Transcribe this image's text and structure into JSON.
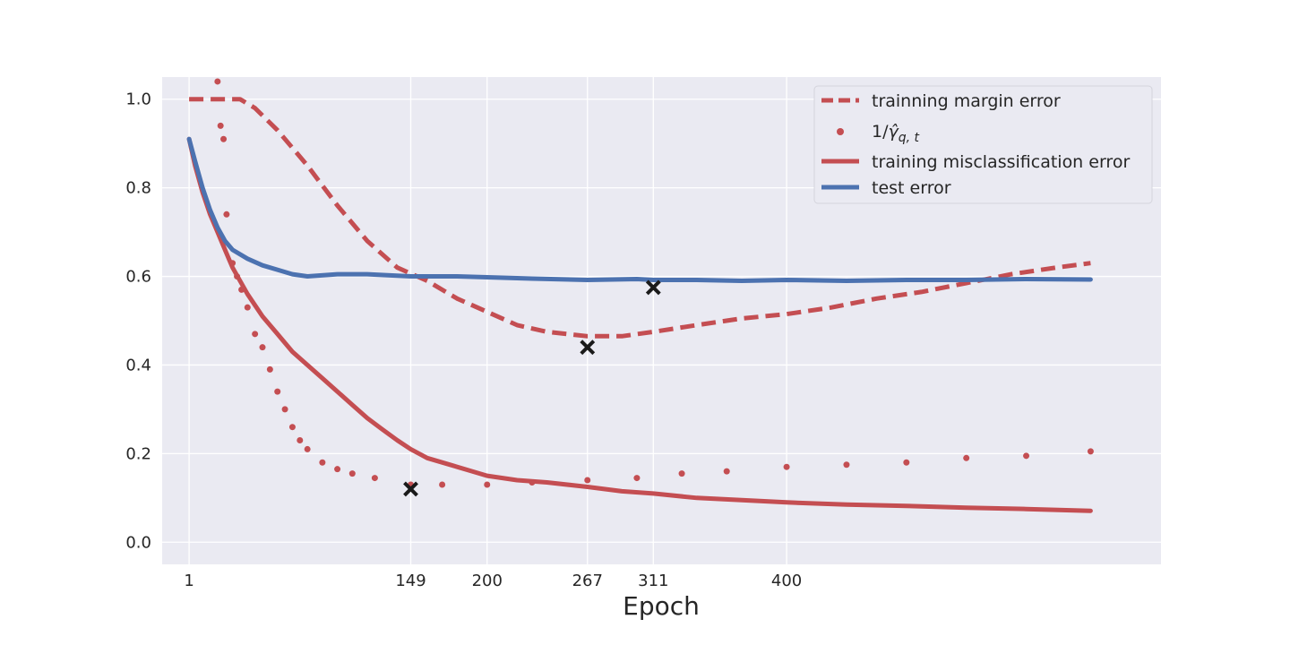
{
  "chart_data": {
    "type": "line",
    "title": "",
    "xlabel": "Epoch",
    "ylabel": "",
    "xlim": [
      -17,
      650
    ],
    "ylim": [
      -0.05,
      1.05
    ],
    "x_ticks": [
      1,
      149,
      200,
      267,
      311,
      400
    ],
    "y_ticks": [
      0.0,
      0.2,
      0.4,
      0.6,
      0.8,
      1.0
    ],
    "y_tick_labels": [
      "0.0",
      "0.2",
      "0.4",
      "0.6",
      "0.8",
      "1.0"
    ],
    "grid": true,
    "legend_position": "top-right",
    "colors": {
      "red": "#c44e52",
      "blue": "#4c72b0",
      "marker": "#1a1a1a",
      "background": "#eaeaf2",
      "grid": "#ffffff"
    },
    "series": [
      {
        "name": "trainning margin error",
        "style": "dashed",
        "color": "#c44e52",
        "points": [
          [
            1,
            1.0
          ],
          [
            25,
            1.0
          ],
          [
            35,
            1.0
          ],
          [
            45,
            0.98
          ],
          [
            60,
            0.93
          ],
          [
            80,
            0.85
          ],
          [
            100,
            0.76
          ],
          [
            120,
            0.68
          ],
          [
            140,
            0.62
          ],
          [
            160,
            0.59
          ],
          [
            180,
            0.55
          ],
          [
            200,
            0.52
          ],
          [
            220,
            0.49
          ],
          [
            240,
            0.475
          ],
          [
            267,
            0.465
          ],
          [
            290,
            0.465
          ],
          [
            311,
            0.475
          ],
          [
            340,
            0.49
          ],
          [
            370,
            0.505
          ],
          [
            400,
            0.515
          ],
          [
            430,
            0.53
          ],
          [
            460,
            0.55
          ],
          [
            490,
            0.565
          ],
          [
            520,
            0.585
          ],
          [
            550,
            0.605
          ],
          [
            580,
            0.62
          ],
          [
            603,
            0.63
          ]
        ]
      },
      {
        "name": "1/γ̂_{q,t}",
        "style": "dots",
        "color": "#c44e52",
        "points": [
          [
            20,
            1.04
          ],
          [
            22,
            0.94
          ],
          [
            24,
            0.91
          ],
          [
            26,
            0.74
          ],
          [
            30,
            0.63
          ],
          [
            33,
            0.6
          ],
          [
            36,
            0.57
          ],
          [
            40,
            0.53
          ],
          [
            45,
            0.47
          ],
          [
            50,
            0.44
          ],
          [
            55,
            0.39
          ],
          [
            60,
            0.34
          ],
          [
            65,
            0.3
          ],
          [
            70,
            0.26
          ],
          [
            75,
            0.23
          ],
          [
            80,
            0.21
          ],
          [
            90,
            0.18
          ],
          [
            100,
            0.165
          ],
          [
            110,
            0.155
          ],
          [
            125,
            0.145
          ],
          [
            149,
            0.13
          ],
          [
            170,
            0.13
          ],
          [
            200,
            0.13
          ],
          [
            230,
            0.135
          ],
          [
            267,
            0.14
          ],
          [
            300,
            0.145
          ],
          [
            330,
            0.155
          ],
          [
            360,
            0.16
          ],
          [
            400,
            0.17
          ],
          [
            440,
            0.175
          ],
          [
            480,
            0.18
          ],
          [
            520,
            0.19
          ],
          [
            560,
            0.195
          ],
          [
            603,
            0.205
          ]
        ]
      },
      {
        "name": "training misclassification error",
        "style": "solid",
        "color": "#c44e52",
        "points": [
          [
            1,
            0.91
          ],
          [
            5,
            0.85
          ],
          [
            10,
            0.79
          ],
          [
            15,
            0.74
          ],
          [
            20,
            0.7
          ],
          [
            25,
            0.66
          ],
          [
            30,
            0.62
          ],
          [
            40,
            0.56
          ],
          [
            50,
            0.51
          ],
          [
            60,
            0.47
          ],
          [
            70,
            0.43
          ],
          [
            80,
            0.4
          ],
          [
            90,
            0.37
          ],
          [
            100,
            0.34
          ],
          [
            110,
            0.31
          ],
          [
            120,
            0.28
          ],
          [
            130,
            0.255
          ],
          [
            140,
            0.23
          ],
          [
            149,
            0.21
          ],
          [
            160,
            0.19
          ],
          [
            175,
            0.175
          ],
          [
            190,
            0.16
          ],
          [
            200,
            0.15
          ],
          [
            220,
            0.14
          ],
          [
            240,
            0.135
          ],
          [
            267,
            0.125
          ],
          [
            290,
            0.115
          ],
          [
            311,
            0.11
          ],
          [
            340,
            0.1
          ],
          [
            370,
            0.095
          ],
          [
            400,
            0.09
          ],
          [
            440,
            0.085
          ],
          [
            480,
            0.082
          ],
          [
            520,
            0.078
          ],
          [
            560,
            0.075
          ],
          [
            603,
            0.071
          ]
        ]
      },
      {
        "name": "test error",
        "style": "solid",
        "color": "#4c72b0",
        "points": [
          [
            1,
            0.91
          ],
          [
            5,
            0.86
          ],
          [
            10,
            0.8
          ],
          [
            15,
            0.75
          ],
          [
            20,
            0.71
          ],
          [
            25,
            0.68
          ],
          [
            30,
            0.66
          ],
          [
            40,
            0.64
          ],
          [
            50,
            0.625
          ],
          [
            60,
            0.615
          ],
          [
            70,
            0.605
          ],
          [
            80,
            0.6
          ],
          [
            100,
            0.605
          ],
          [
            120,
            0.605
          ],
          [
            149,
            0.6
          ],
          [
            180,
            0.6
          ],
          [
            200,
            0.598
          ],
          [
            230,
            0.595
          ],
          [
            267,
            0.592
          ],
          [
            300,
            0.594
          ],
          [
            311,
            0.592
          ],
          [
            340,
            0.592
          ],
          [
            370,
            0.59
          ],
          [
            400,
            0.592
          ],
          [
            440,
            0.59
          ],
          [
            480,
            0.592
          ],
          [
            520,
            0.592
          ],
          [
            560,
            0.594
          ],
          [
            603,
            0.593
          ]
        ]
      }
    ],
    "markers": [
      {
        "x": 149,
        "y": 0.12
      },
      {
        "x": 267,
        "y": 0.44
      },
      {
        "x": 311,
        "y": 0.575
      }
    ],
    "legend": [
      {
        "label": "trainning margin error",
        "style": "dashed",
        "color": "#c44e52"
      },
      {
        "label_main": "1/",
        "label_gamma": "γ̂",
        "label_sub": "q, t",
        "style": "dots",
        "color": "#c44e52"
      },
      {
        "label": "training misclassification error",
        "style": "solid",
        "color": "#c44e52"
      },
      {
        "label": "test error",
        "style": "solid",
        "color": "#4c72b0"
      }
    ]
  }
}
